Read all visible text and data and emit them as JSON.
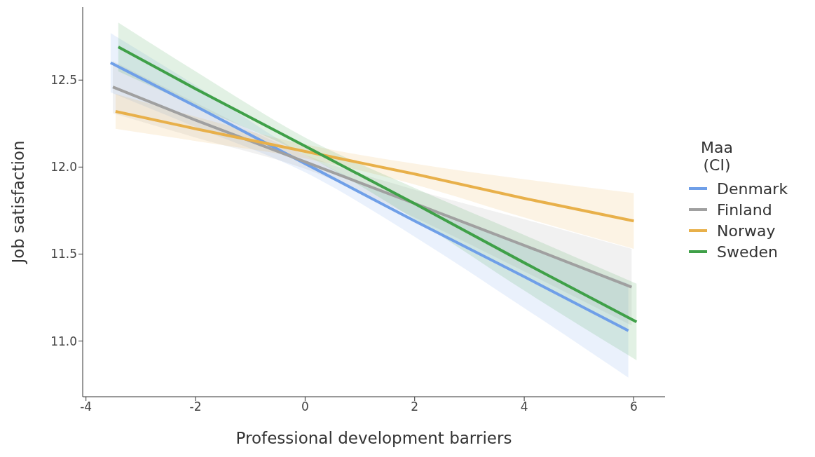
{
  "chart_data": {
    "type": "line",
    "xlabel": "Professional development barriers",
    "ylabel": "Job satisfaction",
    "legend_title": "Maa\n(CI)",
    "legend": "right",
    "xlim": [
      -4.06,
      6.57
    ],
    "ylim": [
      10.68,
      12.92
    ],
    "xticks": [
      -4,
      -2,
      0,
      2,
      4,
      6
    ],
    "yticks": [
      {
        "value": 11,
        "label": "11.0"
      },
      {
        "value": 11.5,
        "label": "11.5"
      },
      {
        "value": 12,
        "label": "12.0"
      },
      {
        "value": 12.5,
        "label": "12.5"
      }
    ],
    "series": [
      {
        "name": "Denmark",
        "color": "#6f9fe8",
        "x": [
          -3.55,
          -2,
          0,
          2,
          4,
          5.9
        ],
        "values": [
          12.6,
          12.35,
          12.02,
          11.69,
          11.37,
          11.06
        ],
        "lower": [
          12.43,
          12.23,
          11.97,
          11.6,
          11.19,
          10.79
        ],
        "upper": [
          12.77,
          12.47,
          12.07,
          11.78,
          11.55,
          11.33
        ]
      },
      {
        "name": "Finland",
        "color": "#a0a0a0",
        "x": [
          -3.51,
          -2,
          0,
          2,
          4,
          5.96
        ],
        "values": [
          12.46,
          12.27,
          12.03,
          11.79,
          11.55,
          11.31
        ],
        "lower": [
          12.31,
          12.17,
          11.99,
          11.71,
          11.4,
          11.09
        ],
        "upper": [
          12.61,
          12.37,
          12.07,
          11.87,
          11.7,
          11.53
        ]
      },
      {
        "name": "Norway",
        "color": "#e8b04a",
        "x": [
          -3.46,
          -2,
          0,
          2,
          4,
          6
        ],
        "values": [
          12.32,
          12.22,
          12.09,
          11.96,
          11.82,
          11.69
        ],
        "lower": [
          12.22,
          12.15,
          12.05,
          11.9,
          11.71,
          11.53
        ],
        "upper": [
          12.42,
          12.29,
          12.13,
          12.02,
          11.93,
          11.85
        ]
      },
      {
        "name": "Sweden",
        "color": "#3fa048",
        "x": [
          -3.41,
          -2,
          0,
          2,
          4,
          6.05
        ],
        "values": [
          12.69,
          12.45,
          12.12,
          11.79,
          11.45,
          11.11
        ],
        "lower": [
          12.55,
          12.35,
          12.07,
          11.7,
          11.29,
          10.89
        ],
        "upper": [
          12.83,
          12.55,
          12.17,
          11.88,
          11.61,
          11.33
        ]
      }
    ]
  }
}
